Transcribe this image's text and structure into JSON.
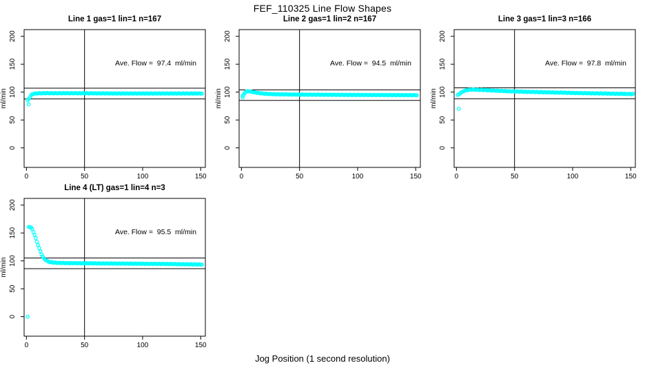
{
  "figure": {
    "title": "FEF_110325  Line Flow Shapes",
    "xlabel": "Jog Position (1 second resolution)",
    "point_color": "#00FFFF",
    "axis_color": "#000000",
    "background": "#FFFFFF"
  },
  "chart_data": [
    {
      "type": "scatter",
      "title": "Line 1 gas=1 lin=1 n=167",
      "annotation": "Ave. Flow =  97.4  ml/min",
      "ave_flow": 97.4,
      "n": 167,
      "ylabel": "ml/min",
      "xlim": [
        -2,
        154
      ],
      "ylim": [
        -35,
        212
      ],
      "xticks": [
        0,
        50,
        100,
        150
      ],
      "yticks": [
        0,
        50,
        100,
        150,
        200
      ],
      "vline_x": 50,
      "hlines": [
        107.1,
        87.7
      ],
      "x_start": 1,
      "x_end": 151,
      "x_step": 1,
      "profile_points": [
        [
          1,
          85
        ],
        [
          2,
          88
        ],
        [
          3,
          91
        ],
        [
          4,
          94
        ],
        [
          5,
          96
        ],
        [
          6,
          97
        ],
        [
          8,
          97.5
        ],
        [
          12,
          98
        ],
        [
          40,
          98
        ],
        [
          80,
          97.5
        ],
        [
          151,
          97.5
        ]
      ],
      "outlier_points": [
        [
          2,
          78
        ]
      ]
    },
    {
      "type": "scatter",
      "title": "Line 2 gas=1 lin=2 n=167",
      "annotation": "Ave. Flow =  94.5  ml/min",
      "ave_flow": 94.5,
      "n": 167,
      "ylabel": "ml/min",
      "xlim": [
        -2,
        154
      ],
      "ylim": [
        -35,
        212
      ],
      "xticks": [
        0,
        50,
        100,
        150
      ],
      "yticks": [
        0,
        50,
        100,
        150,
        200
      ],
      "vline_x": 50,
      "hlines": [
        104.0,
        85.1
      ],
      "x_start": 1,
      "x_end": 151,
      "x_step": 1,
      "profile_points": [
        [
          1,
          93
        ],
        [
          2,
          96
        ],
        [
          3,
          99
        ],
        [
          4,
          100.5
        ],
        [
          5,
          101.5
        ],
        [
          7,
          101.5
        ],
        [
          9,
          100.5
        ],
        [
          11,
          99.5
        ],
        [
          14,
          98.5
        ],
        [
          18,
          97.5
        ],
        [
          24,
          96.5
        ],
        [
          32,
          96
        ],
        [
          50,
          95.5
        ],
        [
          90,
          95
        ],
        [
          151,
          94.5
        ]
      ],
      "outlier_points": [
        [
          1,
          90.5
        ]
      ]
    },
    {
      "type": "scatter",
      "title": "Line 3 gas=1 lin=3 n=166",
      "annotation": "Ave. Flow =  97.8  ml/min",
      "ave_flow": 97.8,
      "n": 166,
      "ylabel": "ml/min",
      "xlim": [
        -2,
        154
      ],
      "ylim": [
        -35,
        212
      ],
      "xticks": [
        0,
        50,
        100,
        150
      ],
      "yticks": [
        0,
        50,
        100,
        150,
        200
      ],
      "vline_x": 50,
      "hlines": [
        107.6,
        88.0
      ],
      "x_start": 1,
      "x_end": 152,
      "x_step": 1,
      "profile_points": [
        [
          1,
          94.5
        ],
        [
          2,
          96
        ],
        [
          4,
          99
        ],
        [
          6,
          101.5
        ],
        [
          9,
          103.5
        ],
        [
          13,
          104.5
        ],
        [
          20,
          104
        ],
        [
          30,
          103
        ],
        [
          45,
          101.5
        ],
        [
          60,
          100.5
        ],
        [
          80,
          99.5
        ],
        [
          100,
          98.5
        ],
        [
          125,
          97.5
        ],
        [
          152,
          96.5
        ]
      ],
      "outlier_points": [
        [
          2,
          70
        ]
      ]
    },
    {
      "type": "scatter",
      "title": "Line 4 (LT) gas=1 lin=4 n=3",
      "annotation": "Ave. Flow =  95.5  ml/min",
      "ave_flow": 95.5,
      "n": 3,
      "ylabel": "ml/min",
      "xlim": [
        -2,
        154
      ],
      "ylim": [
        -35,
        212
      ],
      "xticks": [
        0,
        50,
        100,
        150
      ],
      "yticks": [
        0,
        50,
        100,
        150,
        200
      ],
      "vline_x": 50,
      "hlines": [
        105.1,
        86.0
      ],
      "x_start": 2,
      "x_end": 151,
      "x_step": 1,
      "profile_points": [
        [
          2,
          161
        ],
        [
          3,
          161
        ],
        [
          4,
          159.5
        ],
        [
          5,
          156.5
        ],
        [
          6,
          152
        ],
        [
          7,
          146.5
        ],
        [
          8,
          140.5
        ],
        [
          9,
          134.5
        ],
        [
          10,
          128.5
        ],
        [
          11,
          122.5
        ],
        [
          12,
          117
        ],
        [
          13,
          112
        ],
        [
          14,
          107.5
        ],
        [
          15,
          104.5
        ],
        [
          16,
          102.5
        ],
        [
          17,
          101
        ],
        [
          18,
          99.5
        ],
        [
          20,
          98
        ],
        [
          23,
          97
        ],
        [
          27,
          96.5
        ],
        [
          35,
          96
        ],
        [
          60,
          95.5
        ],
        [
          90,
          95
        ],
        [
          120,
          94.5
        ],
        [
          151,
          93.5
        ]
      ],
      "outlier_points": [
        [
          1,
          0
        ]
      ]
    }
  ]
}
